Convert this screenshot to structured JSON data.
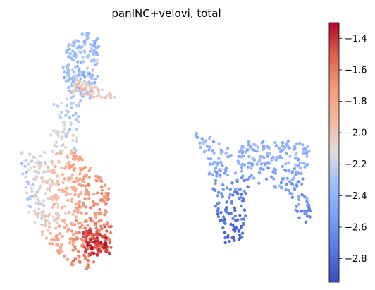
{
  "chart_data": {
    "type": "scatter",
    "title": "panINC+velovi, total",
    "xlabel": "",
    "ylabel": "",
    "axes_visible": false,
    "grid": false,
    "colormap": "coolwarm",
    "colorbar": {
      "placement": "right",
      "vmin": -2.95,
      "vmax": -1.3,
      "ticks": [
        -1.4,
        -1.6,
        -1.8,
        -2.0,
        -2.2,
        -2.4,
        -2.6,
        -2.8
      ],
      "tick_labels": [
        "−1.4",
        "−1.6",
        "−1.8",
        "−2.0",
        "−2.2",
        "−2.4",
        "−2.6",
        "−2.8"
      ]
    },
    "clusters": [
      {
        "region": "upper-left branch (top loop)",
        "approx_points": 320,
        "value_range": [
          -2.55,
          -2.1
        ],
        "mean_value": -2.35
      },
      {
        "region": "upper-left branch (right arm)",
        "approx_points": 90,
        "value_range": [
          -2.1,
          -1.7
        ],
        "mean_value": -1.9
      },
      {
        "region": "left stem",
        "approx_points": 120,
        "value_range": [
          -2.45,
          -1.85
        ],
        "mean_value": -2.2
      },
      {
        "region": "lower-left mass",
        "approx_points": 900,
        "value_range": [
          -2.4,
          -1.3
        ],
        "mean_value": -1.75
      },
      {
        "region": "lower-left tip (dark red)",
        "approx_points": 150,
        "value_range": [
          -1.55,
          -1.3
        ],
        "mean_value": -1.42
      },
      {
        "region": "right cluster",
        "approx_points": 700,
        "value_range": [
          -2.85,
          -2.2
        ],
        "mean_value": -2.55
      }
    ]
  }
}
